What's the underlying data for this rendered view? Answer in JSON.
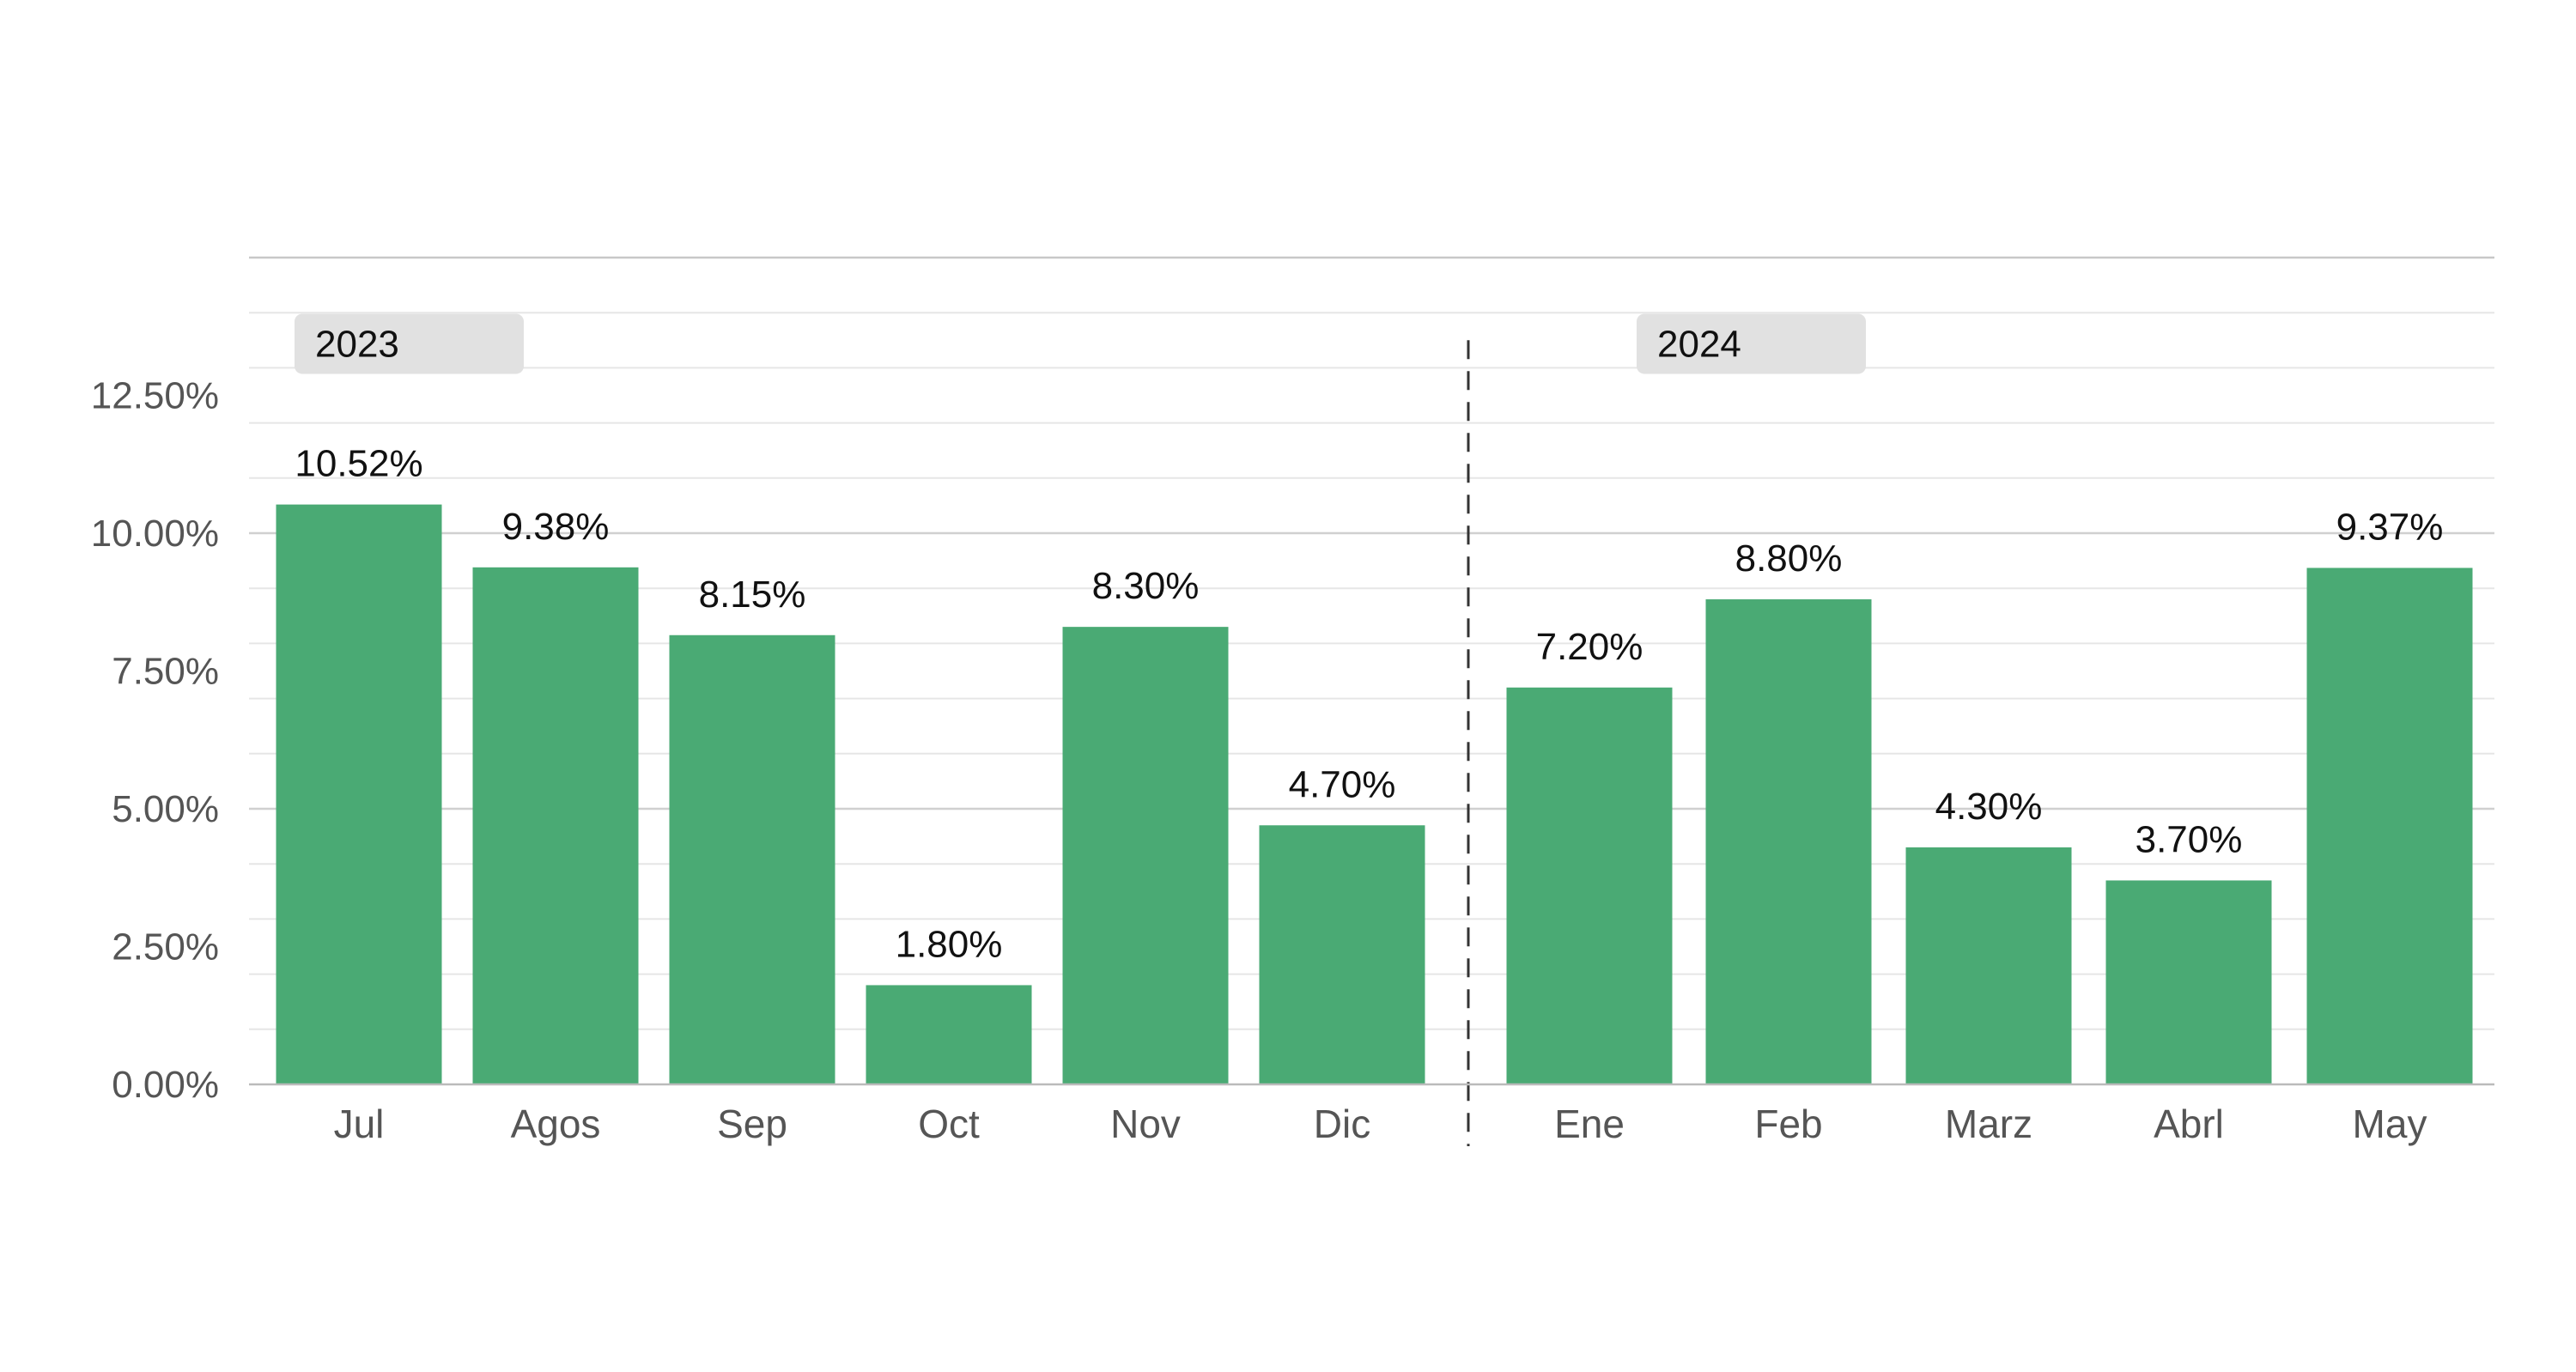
{
  "chart_data": {
    "type": "bar",
    "categories": [
      "Jul",
      "Agos",
      "Sep",
      "Oct",
      "Nov",
      "Dic",
      "Ene",
      "Feb",
      "Marz",
      "Abrl",
      "May"
    ],
    "values": [
      10.52,
      9.38,
      8.15,
      1.8,
      8.3,
      4.7,
      7.2,
      8.8,
      4.3,
      3.7,
      9.37
    ],
    "value_labels": [
      "10.52%",
      "9.38%",
      "8.15%",
      "1.80%",
      "8.30%",
      "4.70%",
      "7.20%",
      "8.80%",
      "4.30%",
      "3.70%",
      "9.37%"
    ],
    "groups": [
      {
        "label": "2023",
        "categories": [
          "Jul",
          "Agos",
          "Sep",
          "Oct",
          "Nov",
          "Dic"
        ]
      },
      {
        "label": "2024",
        "categories": [
          "Ene",
          "Feb",
          "Marz",
          "Abrl",
          "May"
        ]
      }
    ],
    "ylim": [
      0,
      15
    ],
    "yticks": [
      0,
      2.5,
      5,
      7.5,
      10,
      12.5
    ],
    "ytick_labels": [
      "0.00%",
      "2.50%",
      "5.00%",
      "7.50%",
      "10.00%",
      "12.50%"
    ],
    "title": "",
    "xlabel": "",
    "ylabel": "",
    "grid": true,
    "legend": "none",
    "bar_color": "#4aaa74",
    "group_tag_color": "#e1e1e1"
  }
}
